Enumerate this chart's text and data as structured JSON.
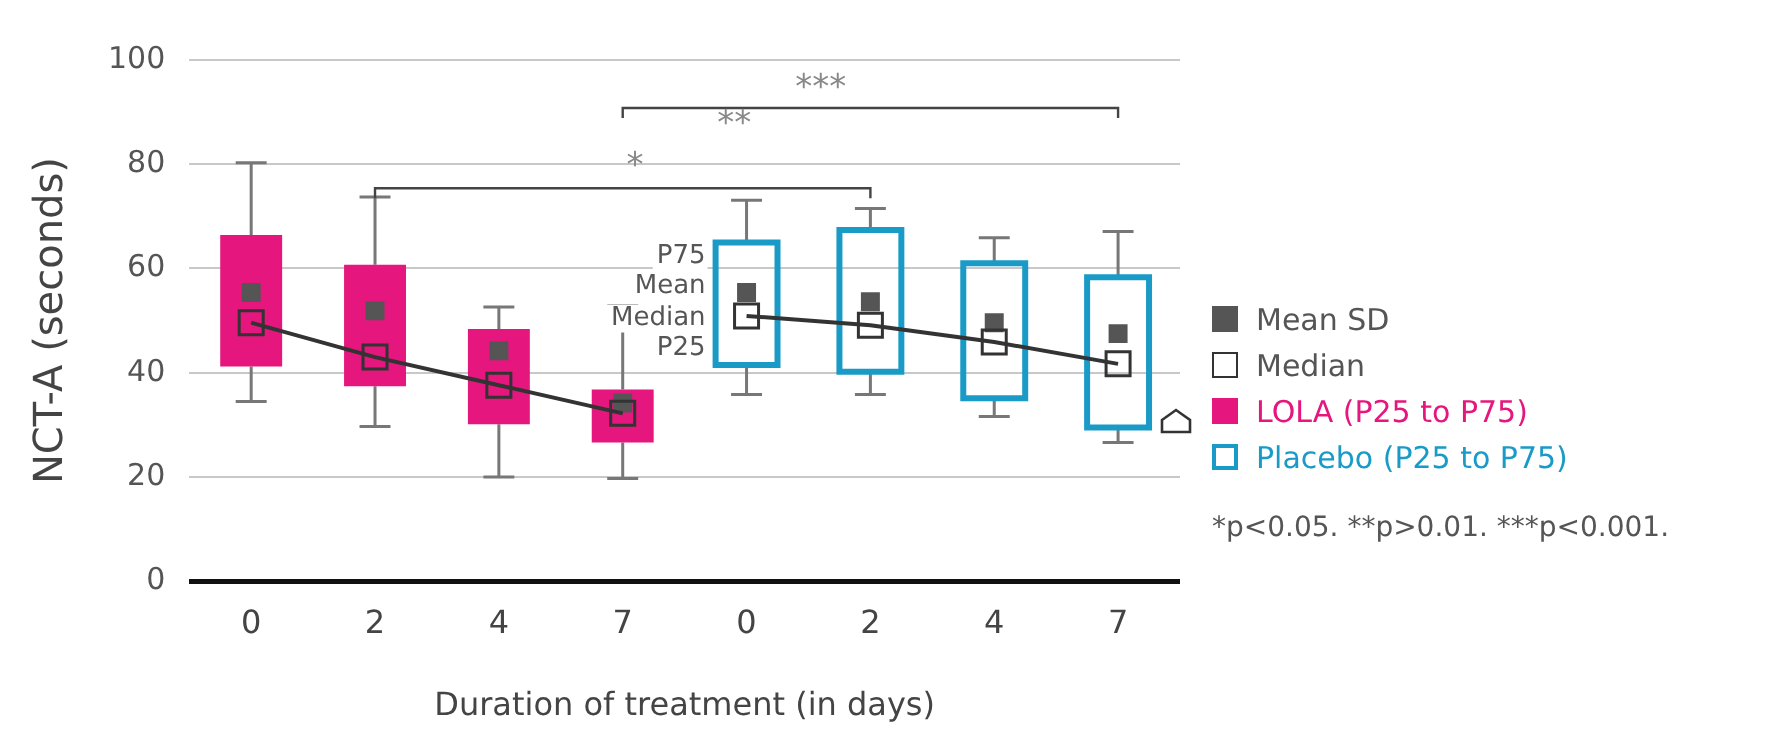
{
  "chart_data": {
    "type": "box",
    "xlabel": "Duration of treatment (in days)",
    "ylabel": "NCT-A (seconds)",
    "categories": [
      "0",
      "2",
      "4",
      "7",
      "0",
      "2",
      "4",
      "7"
    ],
    "ylim": [
      0,
      100
    ],
    "yticks": [
      0,
      20,
      40,
      60,
      80,
      100
    ],
    "grid": "y",
    "legend": "right",
    "series": [
      {
        "name": "Mean SD",
        "type": "scatter",
        "marker": "square",
        "color": "#555555",
        "values": [
          55.4,
          51.9,
          44.2,
          34.2,
          55.4,
          53.6,
          49.6,
          47.5
        ]
      },
      {
        "name": "Median",
        "type": "line",
        "color": "#333333",
        "values": [
          49.6,
          43,
          37.6,
          32.2,
          null,
          null,
          null,
          null
        ]
      },
      {
        "type": "line",
        "color": "#333333",
        "values": [
          null,
          null,
          null,
          null,
          50.9,
          49.1,
          45.9,
          41.7
        ]
      },
      {
        "name": "LOLA (P25 to P75)",
        "type": "box",
        "color": "#e5177e",
        "boxes": [
          {
            "low": 34.5,
            "q1": 41.2,
            "median": 49.6,
            "q3": 66.4,
            "high": 80.3
          },
          {
            "low": 29.7,
            "q1": 37.4,
            "median": 43,
            "q3": 60.7,
            "high": 73.7
          },
          {
            "low": 20,
            "q1": 30.1,
            "median": 37.6,
            "q3": 48.4,
            "high": 52.6
          },
          {
            "low": 19.7,
            "q1": 26.6,
            "median": 32.2,
            "q3": 36.8,
            "high": 52.9
          },
          null,
          null,
          null,
          null
        ]
      },
      {
        "name": "Placebo (P25 to P75)",
        "type": "box",
        "color": "#1a9bc7",
        "boxes": [
          null,
          null,
          null,
          null,
          {
            "low": 35.8,
            "q1": 41.5,
            "median": 50.9,
            "q3": 65,
            "high": 73.1
          },
          {
            "low": 35.8,
            "q1": 40.2,
            "median": 49.1,
            "q3": 67.4,
            "high": 71.5
          },
          {
            "low": 31.6,
            "q1": 35.1,
            "median": 45.9,
            "q3": 61,
            "high": 65.9
          },
          {
            "low": 26.6,
            "q1": 29.5,
            "median": 41.7,
            "q3": 58.3,
            "high": 67.1
          }
        ]
      }
    ],
    "annotations": [
      "*",
      "**",
      "***",
      "P75",
      "Mean",
      "Median",
      "P25",
      "*p<0.05. **p>0.01. ***p<0.001."
    ]
  }
}
